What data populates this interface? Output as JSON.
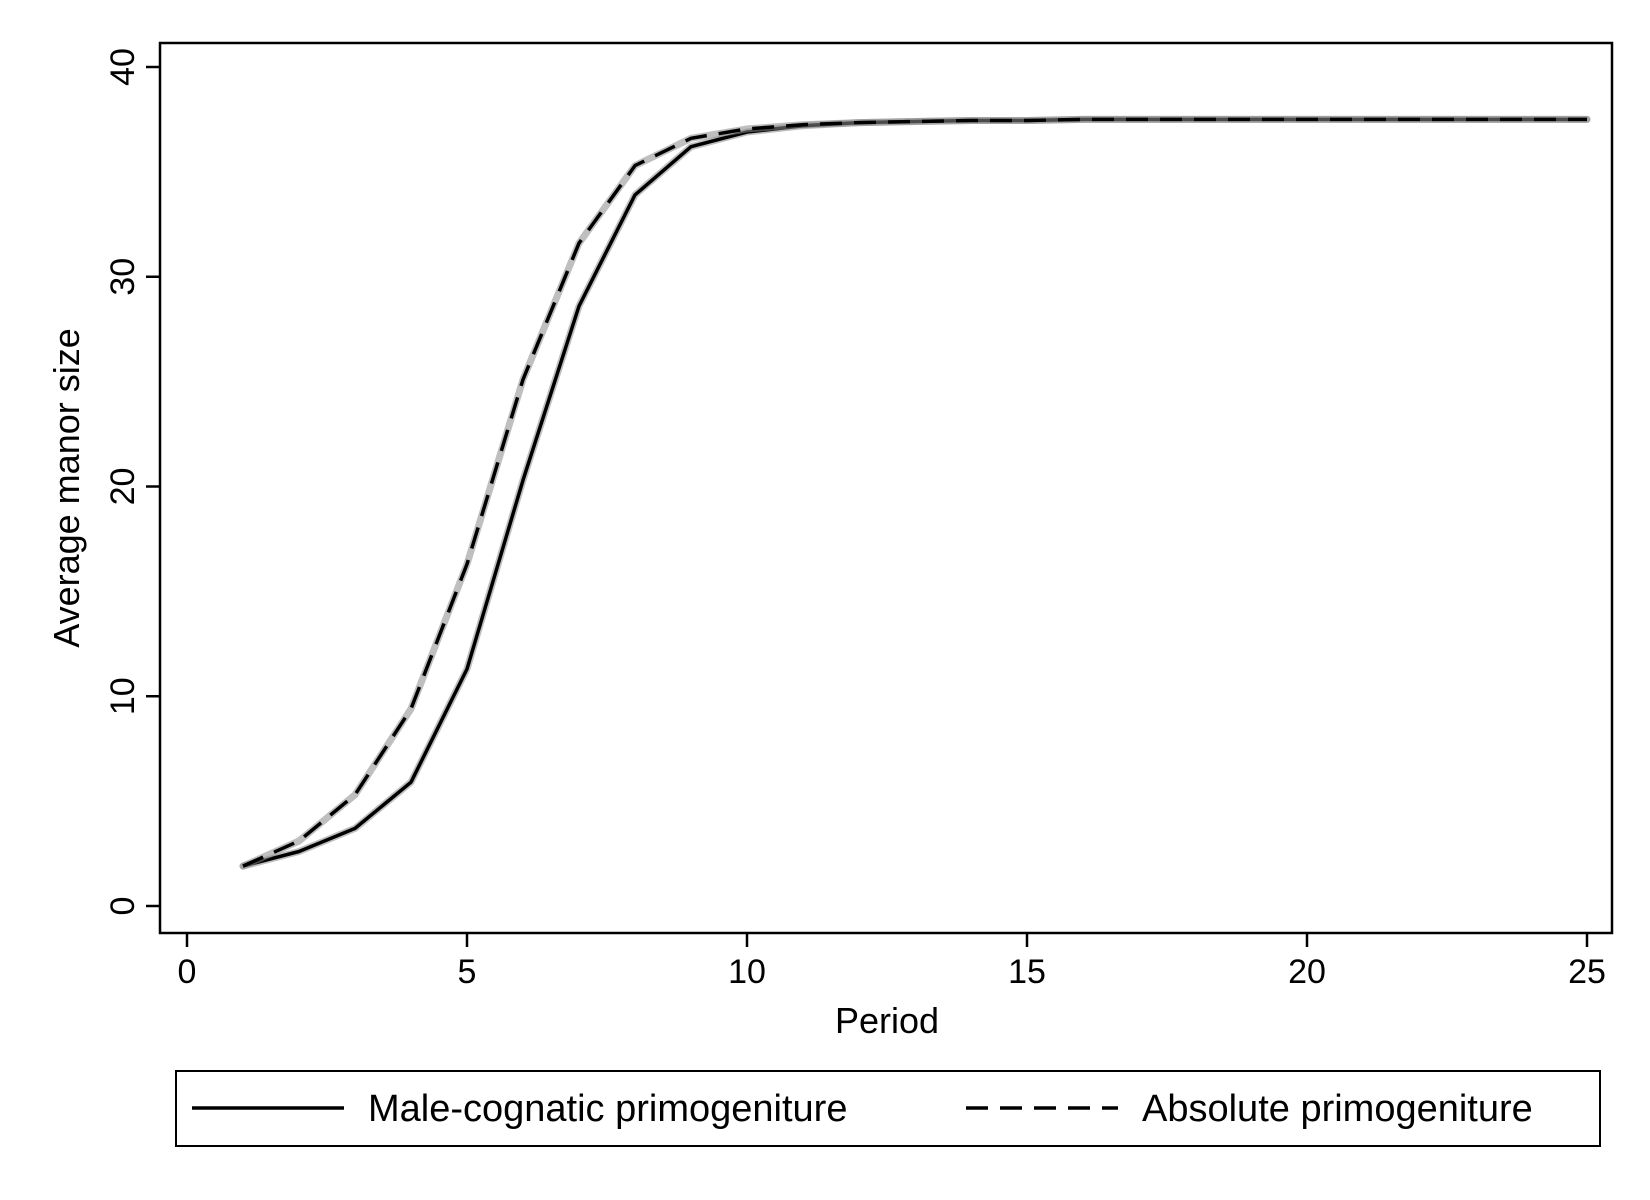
{
  "chart_data": {
    "type": "line",
    "title": "",
    "xlabel": "Period",
    "ylabel": "Average manor size",
    "xlim": [
      0,
      25
    ],
    "ylim": [
      0,
      40
    ],
    "x_ticks": [
      0,
      5,
      10,
      15,
      20,
      25
    ],
    "y_ticks": [
      0,
      10,
      20,
      30,
      40
    ],
    "grid": false,
    "legend_position": "bottom",
    "x": [
      1,
      2,
      3,
      4,
      5,
      6,
      7,
      8,
      9,
      10,
      11,
      12,
      13,
      14,
      15,
      16,
      17,
      18,
      19,
      20,
      21,
      22,
      23,
      24,
      25
    ],
    "series": [
      {
        "name": "Male-cognatic primogeniture",
        "style": "solid",
        "color": "#000000",
        "values": [
          1.9,
          2.6,
          3.7,
          5.9,
          11.3,
          20.3,
          28.6,
          33.9,
          36.2,
          36.9,
          37.2,
          37.35,
          37.4,
          37.45,
          37.45,
          37.5,
          37.5,
          37.5,
          37.5,
          37.5,
          37.5,
          37.5,
          37.5,
          37.5,
          37.5
        ]
      },
      {
        "name": "Absolute primogeniture",
        "style": "dashed",
        "color": "#000000",
        "values": [
          1.9,
          3.1,
          5.3,
          9.4,
          16.3,
          25.1,
          31.6,
          35.3,
          36.6,
          37.05,
          37.25,
          37.35,
          37.4,
          37.45,
          37.45,
          37.5,
          37.5,
          37.5,
          37.5,
          37.5,
          37.5,
          37.5,
          37.5,
          37.5,
          37.5
        ]
      }
    ]
  }
}
